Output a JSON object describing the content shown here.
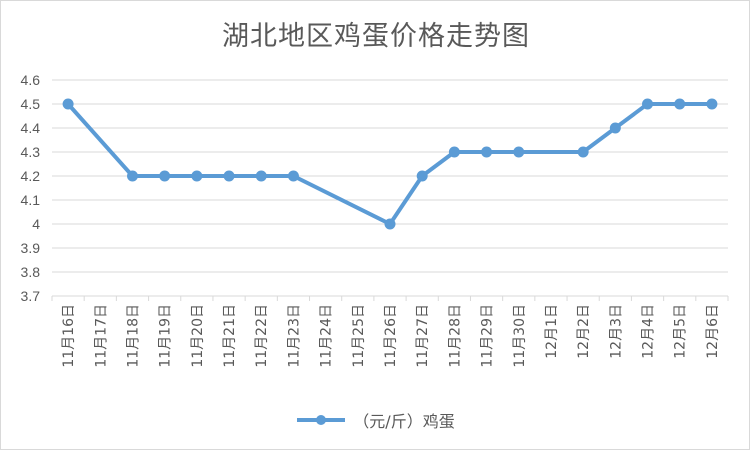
{
  "chart_data": {
    "type": "line",
    "title": "湖北地区鸡蛋价格走势图",
    "xlabel": "",
    "ylabel": "",
    "categories": [
      "11月16日",
      "11月17日",
      "11月18日",
      "11月19日",
      "11月20日",
      "11月21日",
      "11月22日",
      "11月23日",
      "11月24日",
      "11月25日",
      "11月26日",
      "11月27日",
      "11月28日",
      "11月29日",
      "11月30日",
      "12月1日",
      "12月2日",
      "12月3日",
      "12月4日",
      "12月5日",
      "12月6日"
    ],
    "series": [
      {
        "name": "（元/斤）鸡蛋",
        "x": [
          "11月16日",
          "11月18日",
          "11月19日",
          "11月20日",
          "11月21日",
          "11月22日",
          "11月23日",
          "11月26日",
          "11月27日",
          "11月28日",
          "11月29日",
          "11月30日",
          "12月2日",
          "12月3日",
          "12月4日",
          "12月5日",
          "12月6日"
        ],
        "values": [
          4.5,
          4.2,
          4.2,
          4.2,
          4.2,
          4.2,
          4.2,
          4.0,
          4.2,
          4.3,
          4.3,
          4.3,
          4.3,
          4.4,
          4.5,
          4.5,
          4.5
        ]
      }
    ],
    "yticks": [
      "3.7",
      "3.8",
      "3.9",
      "4",
      "4.1",
      "4.2",
      "4.3",
      "4.4",
      "4.5",
      "4.6"
    ],
    "ylim": [
      3.7,
      4.6
    ],
    "grid": true,
    "legend": "bottom",
    "line_color": "#5b9bd5"
  }
}
